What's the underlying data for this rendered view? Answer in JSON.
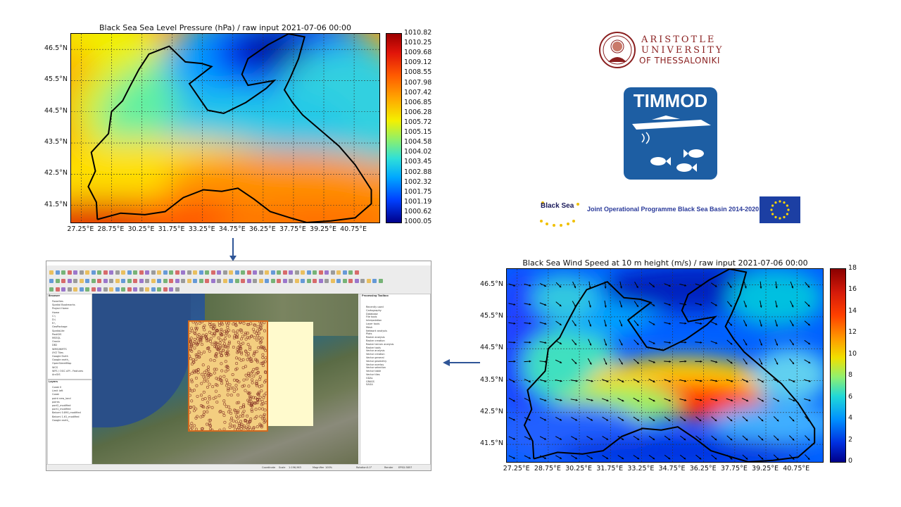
{
  "chart_data": [
    {
      "type": "heatmap",
      "title": "Black Sea Sea Level Pressure (hPa) / raw input 2021-07-06 00:00",
      "x_ticks": [
        "27.25°E",
        "28.75°E",
        "30.25°E",
        "31.75°E",
        "33.25°E",
        "34.75°E",
        "36.25°E",
        "37.75°E",
        "39.25°E",
        "40.75°E"
      ],
      "y_ticks": [
        "46.5°N",
        "45.5°N",
        "44.5°N",
        "43.5°N",
        "42.5°N",
        "41.5°N"
      ],
      "xlim": [
        26.75,
        42.0
      ],
      "ylim": [
        40.95,
        47.0
      ],
      "grid": true,
      "colorbar_ticks": [
        "1010.82",
        "1010.25",
        "1009.68",
        "1009.12",
        "1008.55",
        "1007.98",
        "1007.42",
        "1006.85",
        "1006.28",
        "1005.72",
        "1005.15",
        "1004.58",
        "1004.02",
        "1003.45",
        "1002.88",
        "1002.32",
        "1001.75",
        "1001.19",
        "1000.62",
        "1000.05"
      ],
      "colorbar_range": [
        1000.05,
        1010.82
      ]
    },
    {
      "type": "heatmap",
      "title": "Black Sea Wind Speed at 10 m height (m/s) / raw input 2021-07-06 00:00",
      "x_ticks": [
        "27.25°E",
        "28.75°E",
        "30.25°E",
        "31.75°E",
        "33.25°E",
        "34.75°E",
        "36.25°E",
        "37.75°E",
        "39.25°E",
        "40.75°E"
      ],
      "y_ticks": [
        "46.5°N",
        "45.5°N",
        "44.5°N",
        "43.5°N",
        "42.5°N",
        "41.5°N"
      ],
      "xlim": [
        26.75,
        42.0
      ],
      "ylim": [
        40.95,
        47.0
      ],
      "grid": true,
      "vectors": true,
      "colorbar_ticks": [
        "18",
        "16",
        "14",
        "12",
        "10",
        "8",
        "6",
        "4",
        "2",
        "0"
      ],
      "colorbar_range": [
        0,
        18
      ]
    }
  ],
  "logos": {
    "university_line1": "ARISTOTLE",
    "university_line2": "UNIVERSITY",
    "university_line3": "OF THESSALONIKI",
    "project": "TIMMOD",
    "blacksea_mark": "Black Sea",
    "programme": "Joint Operational Programme Black Sea Basin 2014-2020"
  },
  "qgis": {
    "layers_panel": "Layers",
    "browser_panel": "Browser",
    "processing_panel": "Processing Toolbox",
    "browser_items": [
      "Favorites",
      "Spatial Bookmarks",
      "Project Home",
      "Home",
      "C:\\",
      "D:\\",
      "E:\\",
      "GeoPackage",
      "SpatiaLite",
      "PostGIS",
      "MSSQL",
      "Oracle",
      "DB2",
      "WMS/WMTS",
      "XYZ Tiles",
      "Google Earth",
      "Google earth_",
      "OpenStreetMap",
      "WCS",
      "WFS / OGC API - Features",
      "ArcGIS"
    ],
    "layer_items": [
      "Coast 0",
      "Limit left",
      "Coast",
      "point new_land",
      "points",
      "port2_modified",
      "port1_modified",
      "Batumi 0.890_modified",
      "Batumi 1.61_modified",
      "Google earth_"
    ],
    "toolbox_items": [
      "Recently used",
      "Cartography",
      "Database",
      "File tools",
      "Interpolation",
      "Layer tools",
      "Mesh",
      "Network analysis",
      "Plots",
      "Raster analysis",
      "Raster creation",
      "Raster terrain analysis",
      "Raster tools",
      "Vector analysis",
      "Vector creation",
      "Vector general",
      "Vector geometry",
      "Vector overlay",
      "Vector selection",
      "Vector table",
      "Vector tiles",
      "GDAL",
      "GRASS",
      "SAGA"
    ],
    "status": [
      "Coordinate",
      "Scale",
      "1:196,963",
      "Magnifier",
      "100%",
      "Rotation",
      "0.0°",
      "Render",
      "EPSG:3857"
    ]
  },
  "colors": {
    "arrow": "#2f5597",
    "logo_red": "#8a1f1f",
    "timmod_blue": "#1d5ea3",
    "eu_blue": "#1c3fa3",
    "eu_star": "#ffd700"
  }
}
